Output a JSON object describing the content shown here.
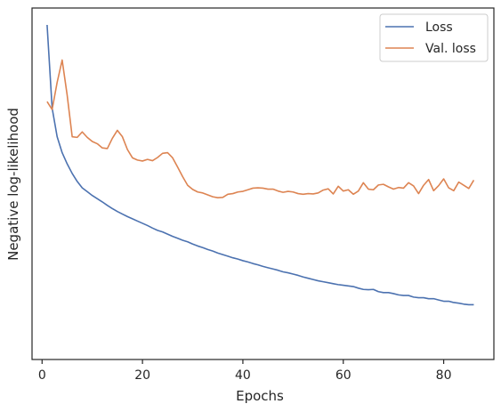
{
  "chart_data": {
    "type": "line",
    "title": "",
    "xlabel": "Epochs",
    "ylabel": "Negative log-likelihood",
    "xlim": [
      -2,
      90
    ],
    "ylim": [
      0,
      100
    ],
    "x_ticks": [
      0,
      20,
      40,
      60,
      80
    ],
    "y_ticks_shown": false,
    "grid": false,
    "legend_position": "top-right",
    "series": [
      {
        "name": "Loss",
        "color": "#4c72b0",
        "x": [
          1,
          2,
          3,
          4,
          5,
          6,
          7,
          8,
          9,
          10,
          11,
          12,
          13,
          14,
          15,
          16,
          17,
          18,
          19,
          20,
          21,
          22,
          23,
          24,
          25,
          26,
          27,
          28,
          29,
          30,
          31,
          32,
          33,
          34,
          35,
          36,
          37,
          38,
          39,
          40,
          41,
          42,
          43,
          44,
          45,
          46,
          47,
          48,
          49,
          50,
          51,
          52,
          53,
          54,
          55,
          56,
          57,
          58,
          59,
          60,
          61,
          62,
          63,
          64,
          65,
          66,
          67,
          68,
          69,
          70,
          71,
          72,
          73,
          74,
          75,
          76,
          77,
          78,
          79,
          80,
          81,
          82,
          83,
          84,
          85,
          86
        ],
        "values": [
          100,
          74,
          65,
          60,
          56.5,
          53.5,
          51,
          49,
          47.8,
          46.6,
          45.6,
          44.6,
          43.5,
          42.5,
          41.6,
          40.8,
          40,
          39.3,
          38.6,
          37.9,
          37.2,
          36.4,
          35.7,
          35.2,
          34.5,
          33.8,
          33.2,
          32.6,
          32.1,
          31.4,
          30.8,
          30.3,
          29.7,
          29.2,
          28.6,
          28.1,
          27.6,
          27.1,
          26.7,
          26.2,
          25.8,
          25.3,
          24.9,
          24.4,
          24,
          23.6,
          23.2,
          22.7,
          22.4,
          22,
          21.6,
          21.1,
          20.7,
          20.3,
          19.9,
          19.6,
          19.3,
          19,
          18.7,
          18.5,
          18.3,
          18.1,
          17.6,
          17.2,
          17.1,
          17.2,
          16.5,
          16.2,
          16.2,
          15.9,
          15.5,
          15.3,
          15.3,
          14.8,
          14.6,
          14.6,
          14.3,
          14.3,
          13.9,
          13.5,
          13.5,
          13.1,
          12.9,
          12.6,
          12.4,
          12.4
        ]
      },
      {
        "name": "Val. loss",
        "color": "#dd8452",
        "x": [
          1,
          2,
          3,
          4,
          5,
          6,
          7,
          8,
          9,
          10,
          11,
          12,
          13,
          14,
          15,
          16,
          17,
          18,
          19,
          20,
          21,
          22,
          23,
          24,
          25,
          26,
          27,
          28,
          29,
          30,
          31,
          32,
          33,
          34,
          35,
          36,
          37,
          38,
          39,
          40,
          41,
          42,
          43,
          44,
          45,
          46,
          47,
          48,
          49,
          50,
          51,
          52,
          53,
          54,
          55,
          56,
          57,
          58,
          59,
          60,
          61,
          62,
          63,
          64,
          65,
          66,
          67,
          68,
          69,
          70,
          71,
          72,
          73,
          74,
          75,
          76,
          77,
          78,
          79,
          80,
          81,
          82,
          83,
          84,
          85,
          86
        ],
        "values": [
          76,
          73.5,
          82,
          89,
          78,
          65,
          64.8,
          66.5,
          64.8,
          63.5,
          62.8,
          61.5,
          61.3,
          64.5,
          67,
          65,
          61,
          58.4,
          57.7,
          57.4,
          57.9,
          57.5,
          58.5,
          59.8,
          60,
          58.4,
          55.5,
          52.5,
          49.8,
          48.5,
          47.7,
          47.4,
          46.8,
          46.2,
          45.9,
          46,
          47,
          47.2,
          47.7,
          47.9,
          48.4,
          48.9,
          49,
          48.9,
          48.6,
          48.6,
          48,
          47.6,
          47.9,
          47.7,
          47.2,
          47,
          47.2,
          47.1,
          47.4,
          48.3,
          48.7,
          47.1,
          49.5,
          48,
          48.4,
          47,
          48,
          50.6,
          48.6,
          48.4,
          49.9,
          50.1,
          49.3,
          48.6,
          49.1,
          48.9,
          50.6,
          49.6,
          47.2,
          49.8,
          51.6,
          48.1,
          49.7,
          51.8,
          49,
          48.1,
          50.8,
          49.8,
          48.8,
          51.4
        ]
      }
    ]
  }
}
